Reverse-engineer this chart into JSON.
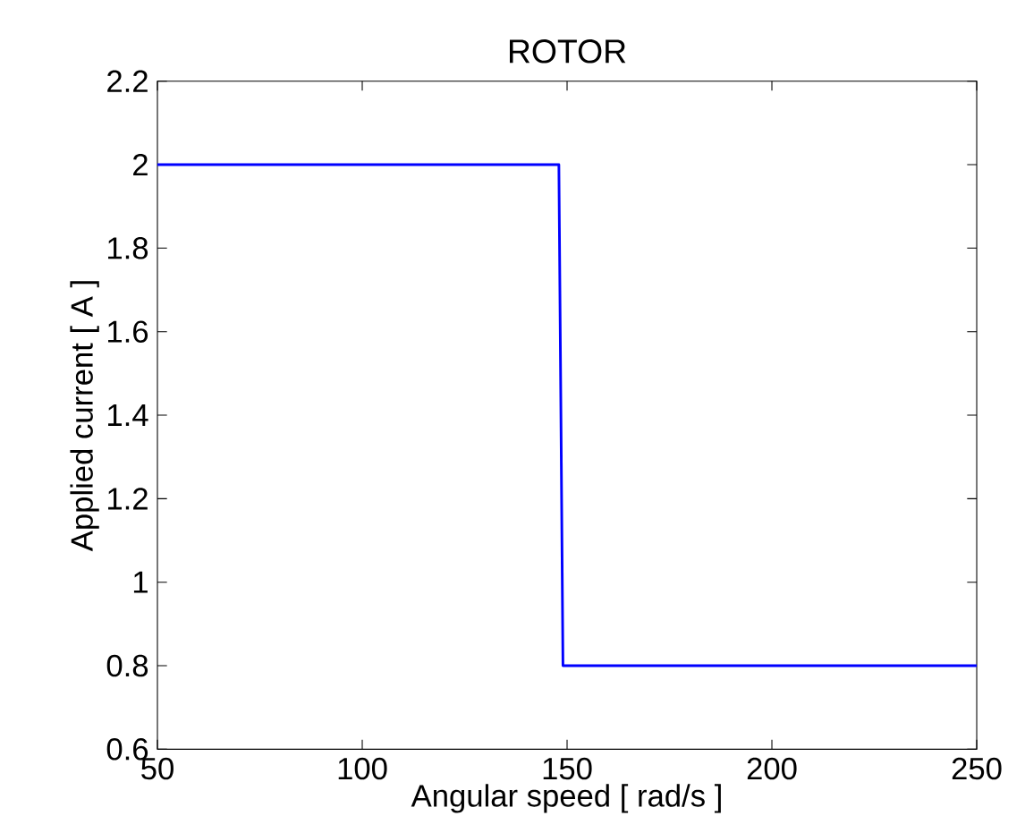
{
  "chart_data": {
    "type": "line",
    "title": "ROTOR",
    "xlabel": "Angular speed   [ rad/s ]",
    "ylabel": "Applied current   [ A ]",
    "x": [
      50,
      148,
      149,
      250
    ],
    "series": [
      {
        "color": "#0000ff",
        "values": [
          2,
          2,
          0.8,
          0.8
        ]
      }
    ],
    "xlim": [
      50,
      250
    ],
    "xticks": [
      50,
      100,
      150,
      200,
      250
    ],
    "ylim": [
      0.6,
      2.2
    ],
    "yticks": [
      0.6,
      0.8,
      1,
      1.2,
      1.4,
      1.6,
      1.8,
      2,
      2.2
    ],
    "marker": "none",
    "line_style": "solid"
  }
}
